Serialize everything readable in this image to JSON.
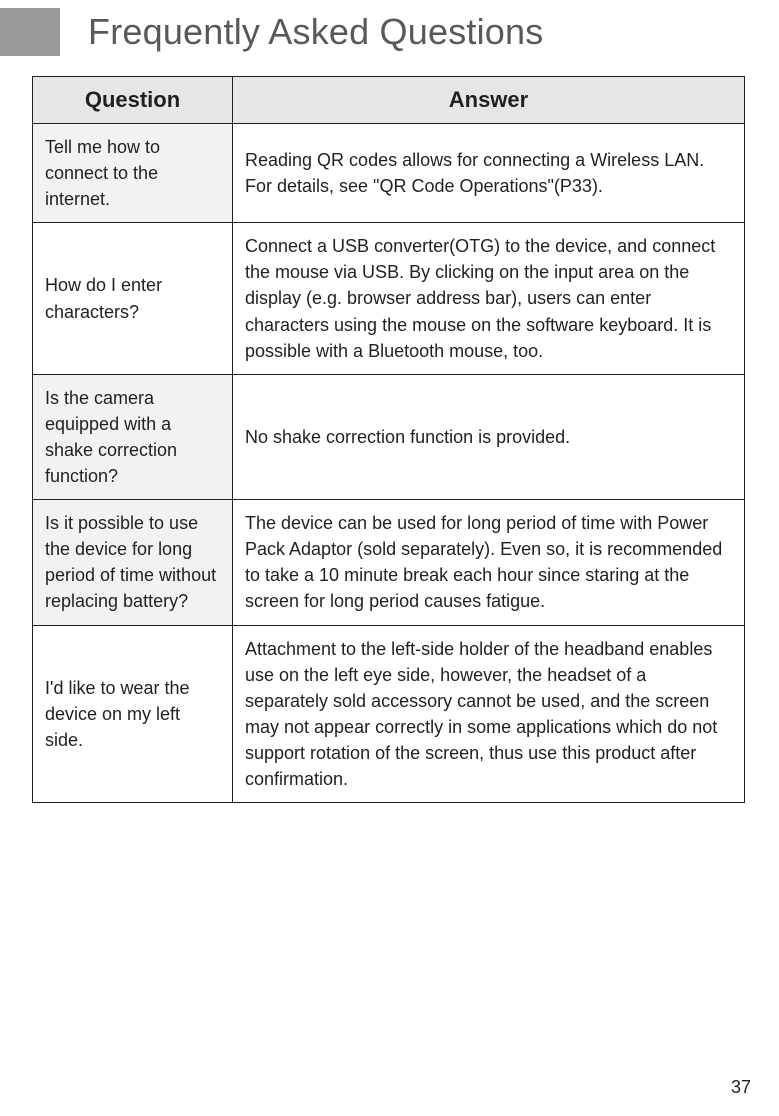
{
  "title": "Frequently Asked Questions",
  "table": {
    "headers": {
      "question": "Question",
      "answer": "Answer"
    },
    "rows": [
      {
        "shaded": true,
        "question": "Tell me how to connect to the internet.",
        "answer": "Reading QR codes allows for connecting a Wireless LAN. For details, see \"QR Code Operations\"(P33)."
      },
      {
        "shaded": false,
        "question": "How do I enter characters?",
        "answer": "Connect a USB converter(OTG) to the device, and connect the mouse via USB. By clicking on the input area on the display (e.g. browser address bar), users can enter characters using the mouse on the software keyboard. It is possible with a Bluetooth mouse, too."
      },
      {
        "shaded": true,
        "question": "Is the camera equipped with a shake correction function?",
        "answer": "No shake correction function is provided."
      },
      {
        "shaded": true,
        "question": "Is it possible to use the device for long period of time without replacing battery?",
        "answer": "The device can be used for long period of time with Power Pack Adaptor (sold separately). Even so, it is recommended to take a 10 minute break each hour since staring at the screen for long period causes fatigue."
      },
      {
        "shaded": false,
        "question": "I'd like to wear the device on my left side.",
        "answer": "Attachment to the left-side holder of the headband enables use on the left eye side, however, the headset of a separately sold accessory cannot be used, and the screen may not appear correctly in some applications which do not support rotation of the screen, thus use this product after confirmation."
      }
    ]
  },
  "page_number": "37",
  "style": {
    "title_color": "#58595b",
    "header_block_color": "#999999",
    "table_header_bg": "#e6e6e6",
    "shaded_cell_bg": "#f2f2f2",
    "border_color": "#231f20",
    "text_color": "#231f20",
    "title_fontsize": 36,
    "header_fontsize": 22,
    "body_fontsize": 18
  }
}
